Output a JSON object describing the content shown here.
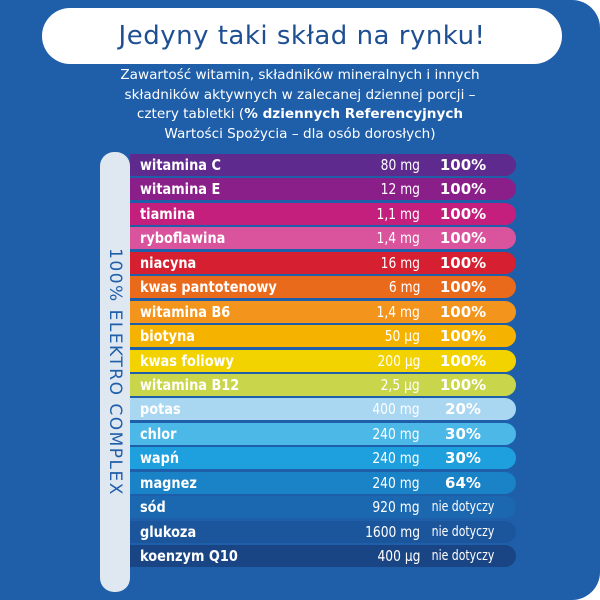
{
  "headline": "Jedyny taki skład na rynku!",
  "intro": {
    "line1": "Zawartość witamin, składników mineralnych i innych",
    "line2": "składników aktywnych w zalecanej dziennej porcji –",
    "line3_a": "cztery tabletki (",
    "line3_b": "% dziennych Referencyjnych",
    "line4": "Wartości Spożycia – dla osób dorosłych)"
  },
  "vertical_label": "100% ELEKTRO COMPLEX",
  "rows": [
    {
      "name": "witamina C",
      "amount": "80 mg",
      "pct": "100%",
      "color": "#5e2a8e"
    },
    {
      "name": "witamina E",
      "amount": "12 mg",
      "pct": "100%",
      "color": "#8a1f8a"
    },
    {
      "name": "tiamina",
      "amount": "1,1 mg",
      "pct": "100%",
      "color": "#c41f7d"
    },
    {
      "name": "ryboflawina",
      "amount": "1,4 mg",
      "pct": "100%",
      "color": "#d9549c"
    },
    {
      "name": "niacyna",
      "amount": "16 mg",
      "pct": "100%",
      "color": "#d61f30"
    },
    {
      "name": "kwas pantotenowy",
      "amount": "6 mg",
      "pct": "100%",
      "color": "#ea6a1c"
    },
    {
      "name": "witamina B6",
      "amount": "1,4 mg",
      "pct": "100%",
      "color": "#f3951d"
    },
    {
      "name": "biotyna",
      "amount": "50 µg",
      "pct": "100%",
      "color": "#f5b300"
    },
    {
      "name": "kwas foliowy",
      "amount": "200 µg",
      "pct": "100%",
      "color": "#f2d300"
    },
    {
      "name": "witamina B12",
      "amount": "2,5 µg",
      "pct": "100%",
      "color": "#c9d54a"
    },
    {
      "name": "potas",
      "amount": "400 mg",
      "pct": "20%",
      "color": "#a9d6f0"
    },
    {
      "name": "chlor",
      "amount": "240 mg",
      "pct": "30%",
      "color": "#4bb8e8"
    },
    {
      "name": "wapń",
      "amount": "240 mg",
      "pct": "30%",
      "color": "#1fa0de"
    },
    {
      "name": "magnez",
      "amount": "240 mg",
      "pct": "64%",
      "color": "#1a82c6"
    },
    {
      "name": "sód",
      "amount": "920 mg",
      "pct": "nie dotyczy",
      "color": "#1b68b0"
    },
    {
      "name": "glukoza",
      "amount": "1600 mg",
      "pct": "nie dotyczy",
      "color": "#1b569c"
    },
    {
      "name": "koenzym Q10",
      "amount": "400 µg",
      "pct": "nie dotyczy",
      "color": "#1a4585"
    }
  ]
}
